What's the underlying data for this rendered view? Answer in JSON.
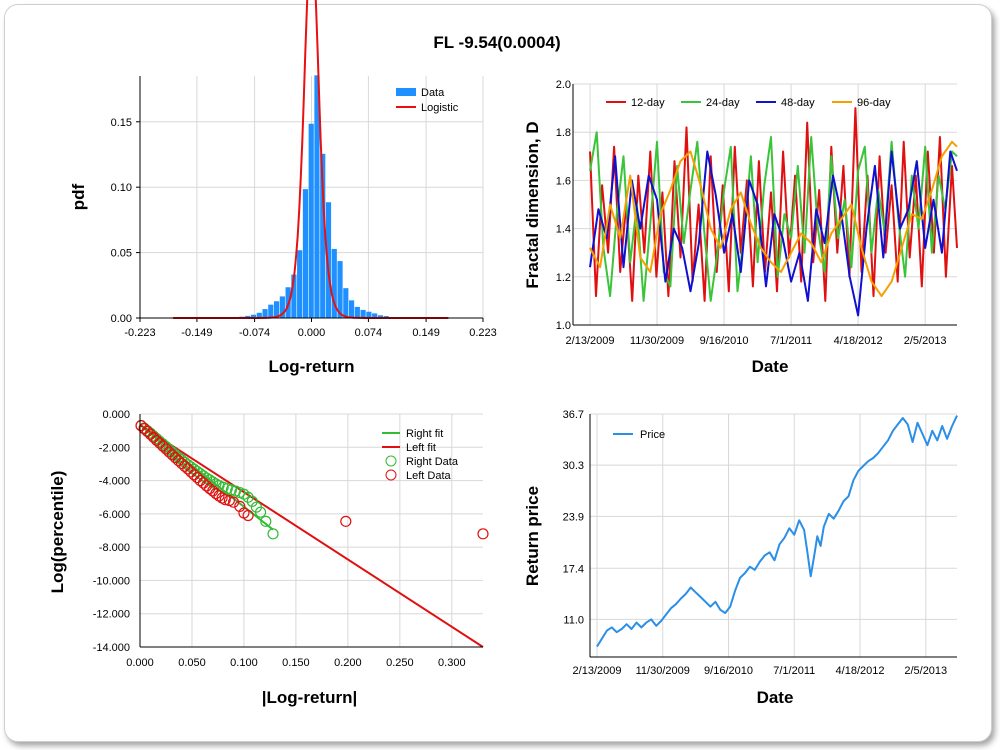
{
  "title": "FL -9.54(0.0004)",
  "colors": {
    "hist_bar": "#1e90ff",
    "logistic": "#e81010",
    "d12": "#e01010",
    "d24": "#3ac43a",
    "d48": "#1010d0",
    "d96": "#f5a000",
    "right_fit": "#33bb33",
    "left_fit": "#e01010",
    "price": "#2a8fe8",
    "grid": "#d8d8d8"
  },
  "chart_data": [
    {
      "id": "hist",
      "type": "bar",
      "title": "",
      "xlabel": "Log-return",
      "ylabel": "pdf",
      "x_ticks": [
        "-0.223",
        "-0.149",
        "-0.074",
        "0.000",
        "0.074",
        "0.149",
        "0.223"
      ],
      "x_tick_values": [
        -0.223,
        -0.149,
        -0.074,
        0.0,
        0.074,
        0.149,
        0.223
      ],
      "y_ticks": [
        "0.00",
        "0.05",
        "0.10",
        "0.15"
      ],
      "y_tick_values": [
        0.0,
        0.05,
        0.1,
        0.15
      ],
      "xlim": [
        -0.223,
        0.223
      ],
      "ylim": [
        0,
        0.185
      ],
      "legend": [
        "Data",
        "Logistic"
      ],
      "legend_position": "top-right",
      "bin_width": 0.0075,
      "bin_centers": [
        -0.1875,
        -0.18,
        -0.1725,
        -0.165,
        -0.1575,
        -0.15,
        -0.1425,
        -0.135,
        -0.1275,
        -0.12,
        -0.1125,
        -0.105,
        -0.0975,
        -0.09,
        -0.0825,
        -0.075,
        -0.0675,
        -0.06,
        -0.0525,
        -0.045,
        -0.0375,
        -0.03,
        -0.0225,
        -0.015,
        -0.0075,
        0.0,
        0.0075,
        0.015,
        0.0225,
        0.03,
        0.0375,
        0.045,
        0.0525,
        0.06,
        0.0675,
        0.075,
        0.0825,
        0.09,
        0.0975,
        0.105
      ],
      "values": [
        0.0003,
        0.0,
        0.0,
        0.0003,
        0.0,
        0.0,
        0.0003,
        0.0,
        0.0003,
        0.0,
        0.0003,
        0.0006,
        0.0006,
        0.001,
        0.0016,
        0.0025,
        0.004,
        0.0068,
        0.0102,
        0.0128,
        0.0165,
        0.0235,
        0.0332,
        0.0518,
        0.0985,
        0.1485,
        0.1855,
        0.1255,
        0.0885,
        0.0528,
        0.0435,
        0.0228,
        0.0135,
        0.0085,
        0.0062,
        0.0048,
        0.0035,
        0.0021,
        0.0015,
        0.0005
      ],
      "logistic": {
        "mu": 0.0,
        "s": 0.0064
      }
    },
    {
      "id": "fractal",
      "type": "line",
      "title": "",
      "xlabel": "Date",
      "ylabel": "Fractal dimension, D",
      "x_ticks": [
        "2/13/2009",
        "11/30/2009",
        "9/16/2010",
        "7/1/2011",
        "4/18/2012",
        "2/5/2013"
      ],
      "y_ticks": [
        "1.0",
        "1.2",
        "1.4",
        "1.6",
        "1.8",
        "2.0"
      ],
      "y_tick_values": [
        1.0,
        1.2,
        1.4,
        1.6,
        1.8,
        2.0
      ],
      "ylim": [
        1.0,
        2.0
      ],
      "legend_position": "top",
      "x_unit": "trading-day index, 0 = 2/13/2009",
      "xlim": [
        0,
        1095
      ],
      "tick_index": [
        0,
        200,
        400,
        600,
        800,
        1000
      ],
      "series": [
        {
          "name": "12-day",
          "x": [
            0,
            18,
            36,
            54,
            72,
            90,
            108,
            126,
            144,
            162,
            180,
            198,
            216,
            234,
            252,
            270,
            288,
            306,
            324,
            342,
            360,
            378,
            396,
            414,
            432,
            450,
            468,
            486,
            504,
            522,
            540,
            558,
            576,
            594,
            612,
            630,
            648,
            666,
            684,
            702,
            720,
            738,
            756,
            774,
            792,
            810,
            828,
            846,
            864,
            882,
            900,
            918,
            936,
            954,
            972,
            990,
            1008,
            1026,
            1044,
            1062,
            1080,
            1095
          ],
          "y": [
            1.72,
            1.12,
            1.58,
            1.3,
            1.74,
            1.22,
            1.5,
            1.1,
            1.62,
            1.3,
            1.72,
            1.2,
            1.55,
            1.12,
            1.68,
            1.28,
            1.82,
            1.18,
            1.5,
            1.1,
            1.7,
            1.22,
            1.58,
            1.14,
            1.74,
            1.3,
            1.6,
            1.16,
            1.68,
            1.22,
            1.55,
            1.14,
            1.72,
            1.28,
            1.62,
            1.18,
            1.84,
            1.26,
            1.56,
            1.1,
            1.74,
            1.3,
            1.66,
            1.2,
            1.9,
            1.22,
            1.62,
            1.12,
            1.7,
            1.3,
            1.58,
            1.18,
            1.76,
            1.28,
            1.62,
            1.16,
            1.72,
            1.3,
            1.78,
            1.2,
            1.66,
            1.32
          ]
        },
        {
          "name": "24-day",
          "x": [
            0,
            20,
            40,
            60,
            80,
            100,
            120,
            140,
            160,
            180,
            200,
            220,
            240,
            260,
            280,
            300,
            320,
            340,
            360,
            380,
            400,
            420,
            440,
            460,
            480,
            500,
            520,
            540,
            560,
            580,
            600,
            620,
            640,
            660,
            680,
            700,
            720,
            740,
            760,
            780,
            800,
            820,
            840,
            860,
            880,
            900,
            920,
            940,
            960,
            980,
            1000,
            1020,
            1040,
            1060,
            1080,
            1095
          ],
          "y": [
            1.64,
            1.8,
            1.32,
            1.12,
            1.46,
            1.7,
            1.26,
            1.5,
            1.1,
            1.42,
            1.76,
            1.22,
            1.16,
            1.66,
            1.34,
            1.56,
            1.76,
            1.4,
            1.1,
            1.3,
            1.56,
            1.74,
            1.14,
            1.38,
            1.7,
            1.26,
            1.58,
            1.78,
            1.2,
            1.46,
            1.36,
            1.66,
            1.3,
            1.78,
            1.4,
            1.22,
            1.7,
            1.36,
            1.52,
            1.24,
            1.64,
            1.74,
            1.3,
            1.56,
            1.38,
            1.76,
            1.44,
            1.2,
            1.62,
            1.4,
            1.74,
            1.3,
            1.62,
            1.48,
            1.72,
            1.7
          ]
        },
        {
          "name": "48-day",
          "x": [
            0,
            25,
            50,
            75,
            100,
            125,
            150,
            175,
            200,
            225,
            250,
            275,
            300,
            325,
            350,
            375,
            400,
            425,
            450,
            475,
            500,
            525,
            550,
            575,
            600,
            625,
            650,
            675,
            700,
            725,
            750,
            775,
            800,
            825,
            850,
            875,
            900,
            925,
            950,
            975,
            1000,
            1025,
            1050,
            1075,
            1095
          ],
          "y": [
            1.24,
            1.48,
            1.36,
            1.7,
            1.24,
            1.6,
            1.4,
            1.62,
            1.52,
            1.18,
            1.4,
            1.32,
            1.14,
            1.34,
            1.72,
            1.54,
            1.3,
            1.46,
            1.22,
            1.6,
            1.5,
            1.16,
            1.46,
            1.36,
            1.18,
            1.3,
            1.1,
            1.48,
            1.34,
            1.62,
            1.46,
            1.2,
            1.04,
            1.4,
            1.66,
            1.28,
            1.72,
            1.4,
            1.48,
            1.68,
            1.32,
            1.52,
            1.3,
            1.72,
            1.64
          ]
        },
        {
          "name": "96-day",
          "x": [
            0,
            30,
            60,
            90,
            120,
            150,
            180,
            210,
            240,
            270,
            300,
            330,
            360,
            390,
            420,
            450,
            480,
            510,
            540,
            570,
            600,
            630,
            660,
            690,
            720,
            750,
            780,
            810,
            840,
            870,
            900,
            930,
            960,
            990,
            1020,
            1050,
            1080,
            1095
          ],
          "y": [
            1.32,
            1.24,
            1.5,
            1.36,
            1.62,
            1.28,
            1.22,
            1.46,
            1.56,
            1.68,
            1.72,
            1.58,
            1.4,
            1.32,
            1.48,
            1.55,
            1.42,
            1.32,
            1.26,
            1.22,
            1.3,
            1.38,
            1.34,
            1.26,
            1.38,
            1.44,
            1.5,
            1.32,
            1.18,
            1.12,
            1.18,
            1.32,
            1.46,
            1.44,
            1.56,
            1.7,
            1.76,
            1.74
          ]
        }
      ]
    },
    {
      "id": "loglog",
      "type": "scatter",
      "title": "",
      "xlabel": "|Log-return|",
      "ylabel": "Log(percentile)",
      "x_ticks": [
        "0.000",
        "0.050",
        "0.100",
        "0.150",
        "0.200",
        "0.250",
        "0.300"
      ],
      "x_tick_values": [
        0,
        0.05,
        0.1,
        0.15,
        0.2,
        0.25,
        0.3
      ],
      "y_ticks": [
        "0.000",
        "-2.000",
        "-4.000",
        "-6.000",
        "-8.000",
        "-10.000",
        "-12.000",
        "-14.000"
      ],
      "y_tick_values": [
        0,
        -2,
        -4,
        -6,
        -8,
        -10,
        -12,
        -14
      ],
      "xlim": [
        0,
        0.33
      ],
      "ylim": [
        -14,
        0
      ],
      "legend_position": "top-right",
      "fits": [
        {
          "name": "Right fit",
          "x": [
            0.0,
            0.128
          ],
          "y": [
            -0.65,
            -6.95
          ]
        },
        {
          "name": "Left fit",
          "x": [
            0.0,
            0.33
          ],
          "y": [
            -0.65,
            -14.0
          ]
        }
      ],
      "scatter": [
        {
          "name": "Right Data",
          "x": [
            0.001,
            0.004,
            0.007,
            0.01,
            0.013,
            0.016,
            0.019,
            0.022,
            0.025,
            0.028,
            0.031,
            0.034,
            0.037,
            0.04,
            0.043,
            0.046,
            0.049,
            0.052,
            0.055,
            0.058,
            0.061,
            0.064,
            0.067,
            0.07,
            0.073,
            0.076,
            0.08,
            0.084,
            0.088,
            0.092,
            0.096,
            0.1,
            0.104,
            0.108,
            0.112,
            0.116,
            0.121,
            0.128
          ],
          "y": [
            -0.7,
            -0.85,
            -1.0,
            -1.15,
            -1.32,
            -1.48,
            -1.64,
            -1.8,
            -1.96,
            -2.12,
            -2.28,
            -2.44,
            -2.6,
            -2.75,
            -2.9,
            -3.05,
            -3.18,
            -3.32,
            -3.45,
            -3.58,
            -3.72,
            -3.85,
            -3.96,
            -4.08,
            -4.2,
            -4.3,
            -4.4,
            -4.48,
            -4.55,
            -4.63,
            -4.72,
            -4.82,
            -5.0,
            -5.25,
            -5.6,
            -5.9,
            -6.45,
            -7.2
          ]
        },
        {
          "name": "Left Data",
          "x": [
            0.001,
            0.004,
            0.007,
            0.01,
            0.013,
            0.016,
            0.019,
            0.022,
            0.025,
            0.028,
            0.031,
            0.034,
            0.037,
            0.04,
            0.043,
            0.046,
            0.049,
            0.052,
            0.055,
            0.058,
            0.061,
            0.064,
            0.067,
            0.07,
            0.073,
            0.076,
            0.079,
            0.082,
            0.086,
            0.09,
            0.096,
            0.1,
            0.104,
            0.198,
            0.33
          ],
          "y": [
            -0.7,
            -0.88,
            -1.05,
            -1.22,
            -1.4,
            -1.58,
            -1.75,
            -1.93,
            -2.1,
            -2.28,
            -2.45,
            -2.62,
            -2.8,
            -2.97,
            -3.14,
            -3.3,
            -3.48,
            -3.65,
            -3.82,
            -4.0,
            -4.15,
            -4.32,
            -4.48,
            -4.62,
            -4.78,
            -4.92,
            -5.05,
            -5.15,
            -5.2,
            -5.3,
            -5.55,
            -5.95,
            -6.1,
            -6.45,
            -7.2
          ]
        }
      ]
    },
    {
      "id": "price",
      "type": "line",
      "title": "",
      "xlabel": "Date",
      "ylabel": "Return price",
      "x_ticks": [
        "2/13/2009",
        "11/30/2009",
        "9/16/2010",
        "7/1/2011",
        "4/18/2012",
        "2/5/2013"
      ],
      "y_ticks": [
        "11.0",
        "17.4",
        "23.9",
        "30.3",
        "36.7"
      ],
      "y_tick_values": [
        11.0,
        17.4,
        23.9,
        30.3,
        36.7
      ],
      "ylim": [
        6.3,
        36.7
      ],
      "legend_position": "top-left",
      "x_unit": "trading-day index, 0 = 2/13/2009",
      "xlim": [
        0,
        1095
      ],
      "tick_index": [
        0,
        200,
        400,
        600,
        800,
        1000
      ],
      "series": [
        {
          "name": "Price",
          "x": [
            0,
            15,
            30,
            45,
            60,
            75,
            90,
            105,
            120,
            135,
            150,
            165,
            180,
            195,
            210,
            225,
            240,
            255,
            270,
            285,
            300,
            315,
            330,
            345,
            360,
            375,
            390,
            405,
            420,
            435,
            450,
            465,
            480,
            495,
            510,
            525,
            540,
            555,
            570,
            585,
            600,
            615,
            630,
            640,
            650,
            660,
            670,
            680,
            690,
            705,
            720,
            735,
            750,
            765,
            780,
            795,
            810,
            825,
            840,
            855,
            870,
            885,
            900,
            915,
            930,
            945,
            960,
            975,
            990,
            1005,
            1020,
            1035,
            1050,
            1065,
            1080,
            1095
          ],
          "y": [
            7.6,
            8.6,
            9.6,
            10.0,
            9.4,
            9.8,
            10.4,
            9.8,
            10.6,
            10.0,
            10.6,
            11.0,
            10.2,
            10.8,
            11.6,
            12.4,
            12.9,
            13.6,
            14.2,
            15.0,
            14.4,
            13.8,
            13.2,
            12.6,
            13.2,
            12.2,
            11.8,
            12.6,
            14.6,
            16.2,
            16.8,
            17.6,
            17.2,
            18.2,
            19.0,
            19.4,
            18.4,
            20.4,
            21.2,
            22.4,
            21.6,
            23.4,
            22.2,
            19.4,
            16.4,
            18.8,
            21.4,
            20.2,
            22.6,
            24.2,
            23.6,
            24.6,
            25.8,
            26.4,
            28.4,
            29.6,
            30.2,
            30.8,
            31.2,
            31.8,
            32.6,
            33.4,
            34.6,
            35.4,
            36.2,
            35.4,
            33.2,
            35.6,
            34.2,
            32.8,
            34.6,
            33.4,
            35.2,
            33.6,
            35.2,
            36.5
          ]
        }
      ]
    }
  ]
}
